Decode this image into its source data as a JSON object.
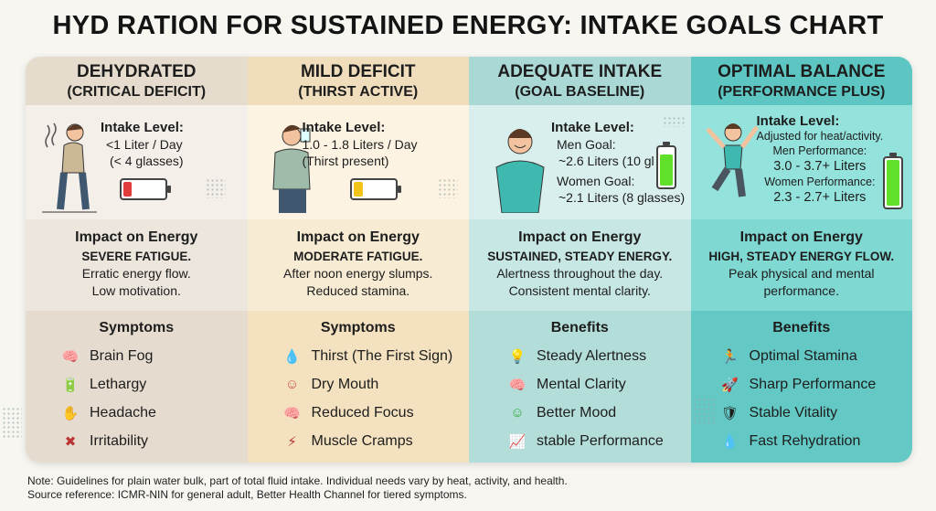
{
  "title": "HYD RATION FOR SUSTAINED ENERGY: INTAKE GOALS CHART",
  "columns": [
    {
      "name": "DEHYDRATED",
      "sub": "(CRITICAL DEFICIT)",
      "intake_label": "Intake Level:",
      "intake_lines": [
        "<1 Liter / Day",
        "(< 4 glasses)"
      ],
      "battery_level": 0.2,
      "battery_color": "#e23b3b",
      "impact_title": "Impact on Energy",
      "impact_bold": "SEVERE FATIGUE.",
      "impact_lines": [
        "Erratic energy flow.",
        "Low motivation."
      ],
      "list_title": "Symptoms",
      "items": [
        {
          "icon": "brain-icon",
          "glyph": "🧠",
          "label": "Brain Fog"
        },
        {
          "icon": "low-battery-icon",
          "glyph": "🔋",
          "label": "Lethargy"
        },
        {
          "icon": "headache-icon",
          "glyph": "✋",
          "label": "Headache"
        },
        {
          "icon": "irritability-icon",
          "glyph": "✖",
          "label": "Irritability"
        }
      ]
    },
    {
      "name": "MILD DEFICIT",
      "sub": "(THIRST ACTIVE)",
      "intake_label": "Intake Level:",
      "intake_lines": [
        "1.0 - 1.8 Liters / Day",
        "(Thirst present)"
      ],
      "battery_level": 0.2,
      "battery_color": "#f2c318",
      "impact_title": "Impact on Energy",
      "impact_bold": "MODERATE FATIGUE.",
      "impact_lines": [
        "After noon energy slumps.",
        "Reduced stamina."
      ],
      "list_title": "Symptoms",
      "items": [
        {
          "icon": "water-drop-icon",
          "glyph": "💧",
          "label": "Thirst (The First Sign)"
        },
        {
          "icon": "mouth-icon",
          "glyph": "☺",
          "label": "Dry Mouth"
        },
        {
          "icon": "brain-icon",
          "glyph": "🧠",
          "label": "Reduced Focus"
        },
        {
          "icon": "muscle-icon",
          "glyph": "⚡",
          "label": "Muscle Cramps"
        }
      ]
    },
    {
      "name": "ADEQUATE INTAKE",
      "sub": "(GOAL BASELINE)",
      "intake_label": "Intake Level:",
      "intake_lines": [
        "Men Goal:",
        "~2.6 Liters (10 gl",
        "Women Goal:",
        "~2.1 Liters (8 glasses)"
      ],
      "battery_level": 0.8,
      "battery_color": "#5fe02a",
      "impact_title": "Impact on Energy",
      "impact_bold": "SUSTAINED, STEADY ENERGY.",
      "impact_lines": [
        "Alertness throughout the day.",
        "Consistent mental clarity."
      ],
      "list_title": "Benefits",
      "items": [
        {
          "icon": "lightbulb-icon",
          "glyph": "💡",
          "label": "Steady Alertness"
        },
        {
          "icon": "brain-icon",
          "glyph": "🧠",
          "label": "Mental Clarity"
        },
        {
          "icon": "smile-icon",
          "glyph": "☺",
          "label": "Better Mood"
        },
        {
          "icon": "growth-chart-icon",
          "glyph": "📈",
          "label": "stable Performance"
        }
      ]
    },
    {
      "name": "OPTIMAL BALANCE",
      "sub": "(PERFORMANCE PLUS)",
      "intake_label": "Intake Level:",
      "intake_lines": [
        "Adjusted for heat/activity.",
        "Men Performance:",
        "3.0 - 3.7+ Liters",
        "Women Performance:",
        "2.3 - 2.7+ Liters"
      ],
      "battery_level": 1.0,
      "battery_color": "#5fe02a",
      "impact_title": "Impact on Energy",
      "impact_bold": "HIGH, STEADY ENERGY FLOW.",
      "impact_lines": [
        "Peak physical and mental",
        "performance."
      ],
      "list_title": "Benefits",
      "items": [
        {
          "icon": "runner-icon",
          "glyph": "🏃",
          "label": "Optimal Stamina"
        },
        {
          "icon": "rocket-icon",
          "glyph": "🚀",
          "label": "Sharp Performance"
        },
        {
          "icon": "shield-icon",
          "glyph": "🛡",
          "label": "Stable Vitality"
        },
        {
          "icon": "water-drop-icon",
          "glyph": "💧",
          "label": "Fast Rehydration"
        }
      ]
    }
  ],
  "note": [
    "Note: Guidelines for plain water bulk, part of total fluid intake. Individual needs vary by heat, activity, and health.",
    "Source reference: ICMR-NIN for general adult, Better Health Channel for tiered symptoms."
  ]
}
